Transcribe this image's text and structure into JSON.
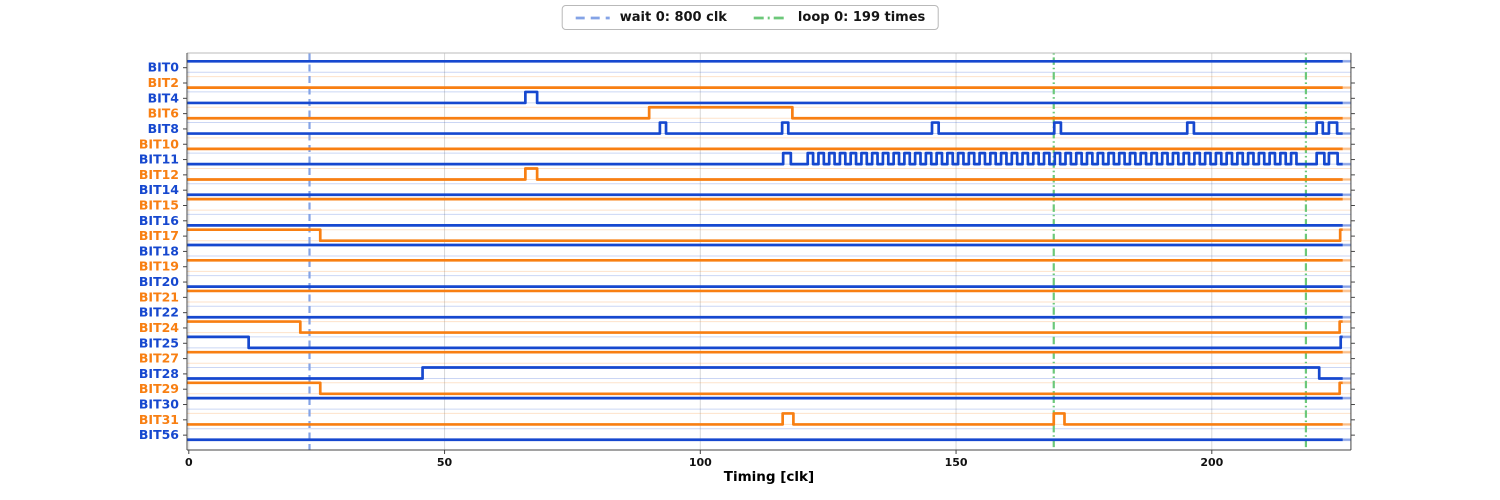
{
  "chart_data": {
    "type": "digital-timing-waveform",
    "xlabel": "Timing [clk]",
    "xticks": [
      0,
      50,
      100,
      150,
      200
    ],
    "xlim": [
      -0.35,
      227.2
    ],
    "sim_end_clk": 225.6,
    "grid": "vertical-only",
    "legend": {
      "position": "top-center",
      "items": [
        {
          "label": "wait 0: 800 clk",
          "color": "#84a3e6",
          "dash": "dashed"
        },
        {
          "label": "loop 0: 199 times",
          "color": "#6cc87a",
          "dash": "dashdot"
        }
      ]
    },
    "markers": [
      {
        "kind": "wait",
        "clk": 23.6
      },
      {
        "kind": "loop",
        "clk": 169.1
      },
      {
        "kind": "loop",
        "clk": 218.4
      }
    ],
    "palette": {
      "blue": "#1648cf",
      "orange": "#f87f12",
      "grid": "#d8d8d8",
      "spine": "#444444",
      "tick_label": "#111111"
    },
    "signals": [
      {
        "name": "BIT0",
        "color": "blue",
        "v0": 1,
        "toggles": []
      },
      {
        "name": "BIT2",
        "color": "orange",
        "v0": 0,
        "toggles": []
      },
      {
        "name": "BIT4",
        "color": "blue",
        "v0": 0,
        "toggles": [
          65.8,
          68.1
        ]
      },
      {
        "name": "BIT6",
        "color": "orange",
        "v0": 0,
        "toggles": [
          90.0,
          118.0
        ]
      },
      {
        "name": "BIT8",
        "color": "blue",
        "v0": 0,
        "toggles": [
          92.1,
          93.3,
          116.0,
          117.2,
          145.3,
          146.6,
          169.2,
          170.5,
          195.2,
          196.5,
          220.5,
          221.7,
          222.9,
          224.5
        ]
      },
      {
        "name": "BIT10",
        "color": "orange",
        "v0": 0,
        "toggles": []
      },
      {
        "name": "BIT11",
        "color": "blue",
        "v0": 0,
        "toggles": [
          116.2,
          117.7
        ],
        "osc": {
          "start": 121.0,
          "end": 217.5,
          "period": 2.1,
          "duty": 0.5
        },
        "toggles_after": [
          220.5,
          222.0,
          222.9,
          224.6
        ]
      },
      {
        "name": "BIT12",
        "color": "orange",
        "v0": 0,
        "toggles": [
          65.8,
          68.1
        ]
      },
      {
        "name": "BIT14",
        "color": "blue",
        "v0": 0,
        "toggles": []
      },
      {
        "name": "BIT15",
        "color": "orange",
        "v0": 1,
        "toggles": []
      },
      {
        "name": "BIT16",
        "color": "blue",
        "v0": 0,
        "toggles": []
      },
      {
        "name": "BIT17",
        "color": "orange",
        "v0": 1,
        "toggles": [
          25.7,
          225.1
        ]
      },
      {
        "name": "BIT18",
        "color": "blue",
        "v0": 1,
        "toggles": []
      },
      {
        "name": "BIT19",
        "color": "orange",
        "v0": 1,
        "toggles": []
      },
      {
        "name": "BIT20",
        "color": "blue",
        "v0": 0,
        "toggles": []
      },
      {
        "name": "BIT21",
        "color": "orange",
        "v0": 1,
        "toggles": []
      },
      {
        "name": "BIT22",
        "color": "blue",
        "v0": 0,
        "toggles": []
      },
      {
        "name": "BIT24",
        "color": "orange",
        "v0": 1,
        "toggles": [
          21.8,
          225.0
        ]
      },
      {
        "name": "BIT25",
        "color": "blue",
        "v0": 1,
        "toggles": [
          11.7,
          225.2
        ]
      },
      {
        "name": "BIT27",
        "color": "orange",
        "v0": 1,
        "toggles": []
      },
      {
        "name": "BIT28",
        "color": "blue",
        "v0": 0,
        "toggles": [
          45.7,
          221.0
        ]
      },
      {
        "name": "BIT29",
        "color": "orange",
        "v0": 1,
        "toggles": [
          25.7,
          225.0
        ]
      },
      {
        "name": "BIT30",
        "color": "blue",
        "v0": 1,
        "toggles": []
      },
      {
        "name": "BIT31",
        "color": "orange",
        "v0": 0,
        "toggles": [
          116.1,
          118.2,
          169.1,
          171.2
        ]
      },
      {
        "name": "BIT56",
        "color": "blue",
        "v0": 0,
        "toggles": []
      }
    ]
  }
}
